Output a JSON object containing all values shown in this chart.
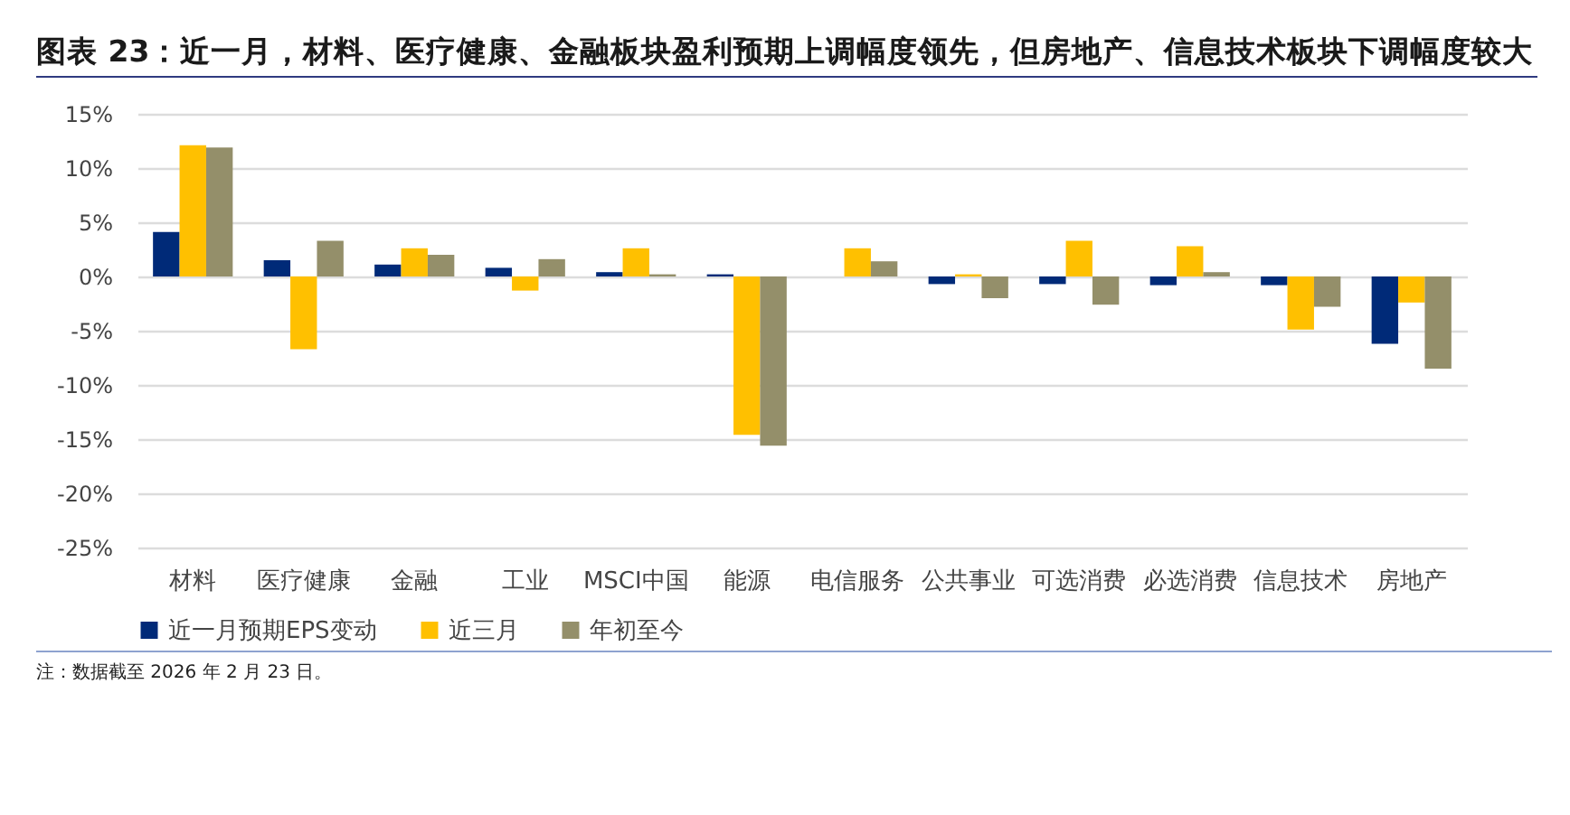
{
  "chart_data": {
    "type": "bar",
    "title": "图表 23：近一月，材料、医疗健康、金融板块盈利预期上调幅度领先，但房地产、信息技术板块下调幅度较大",
    "categories": [
      "材料",
      "医疗健康",
      "金融",
      "工业",
      "MSCI中国",
      "能源",
      "电信服务",
      "公共事业",
      "可选消费",
      "必选消费",
      "信息技术",
      "房地产"
    ],
    "series": [
      {
        "name": "近一月预期EPS变动",
        "color": "#002a78",
        "values": [
          4.1,
          1.5,
          1.1,
          0.8,
          0.4,
          0.2,
          null,
          -0.7,
          -0.7,
          -0.8,
          -0.8,
          -6.2
        ]
      },
      {
        "name": "近三月",
        "color": "#ffc000",
        "values": [
          12.1,
          -6.7,
          2.6,
          -1.3,
          2.6,
          -14.6,
          2.6,
          0.2,
          3.3,
          2.8,
          -4.9,
          -2.4
        ]
      },
      {
        "name": "年初至今",
        "color": "#948f6a",
        "values": [
          11.9,
          3.3,
          2.0,
          1.6,
          0.2,
          -15.6,
          1.4,
          -2.0,
          -2.6,
          0.4,
          -2.8,
          -8.5
        ]
      }
    ],
    "ylim": [
      -25,
      15
    ],
    "yticks": [
      {
        "value": -25,
        "label": "-25%"
      },
      {
        "value": -20,
        "label": "-20%"
      },
      {
        "value": -15,
        "label": "-15%"
      },
      {
        "value": -10,
        "label": "-10%"
      },
      {
        "value": -5,
        "label": "-5%"
      },
      {
        "value": 0,
        "label": "0%"
      },
      {
        "value": 5,
        "label": "5%"
      },
      {
        "value": 10,
        "label": "10%"
      },
      {
        "value": 15,
        "label": "15%"
      }
    ],
    "grid": "y",
    "legend": "bottom",
    "annotations": [
      "注：数据截至 2026 年 2 月 23 日。"
    ]
  }
}
